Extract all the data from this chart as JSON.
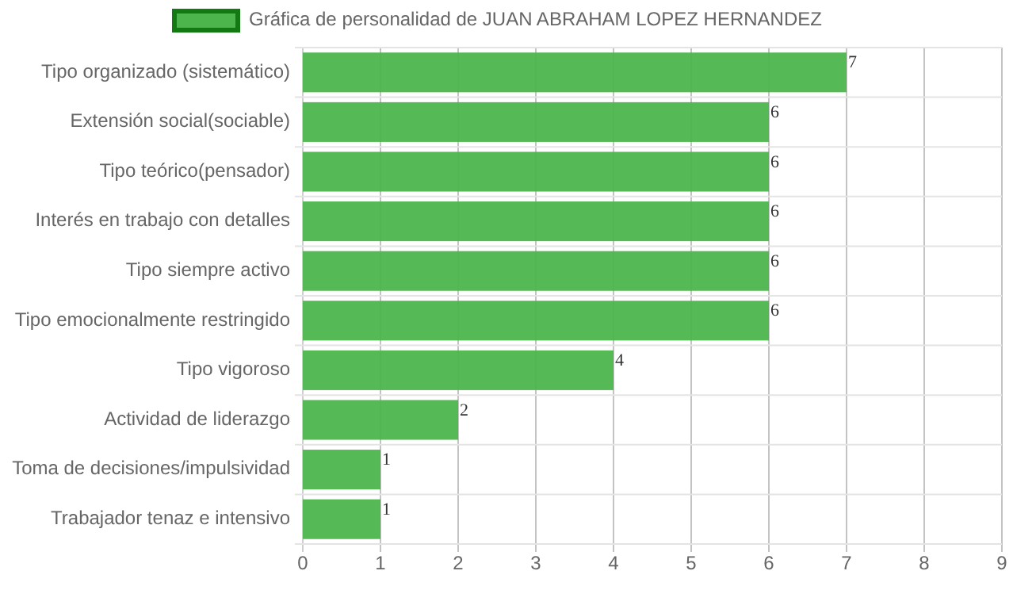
{
  "chart_data": {
    "type": "bar",
    "orientation": "horizontal",
    "categories": [
      "Tipo organizado (sistemático)",
      "Extensión social(sociable)",
      "Tipo teórico(pensador)",
      "Interés en trabajo con detalles",
      "Tipo siempre activo",
      "Tipo emocionalmente restringido",
      "Tipo vigoroso",
      "Actividad de liderazgo",
      "Toma de decisiones/impulsividad",
      "Trabajador tenaz e intensivo"
    ],
    "series": [
      {
        "name": "Gráfica de personalidad de JUAN ABRAHAM LOPEZ HERNANDEZ",
        "color": "#4cb64c",
        "values": [
          7,
          6,
          6,
          6,
          6,
          6,
          4,
          2,
          1,
          1
        ]
      }
    ],
    "xlim": [
      0,
      9
    ],
    "xticks": [
      0,
      1,
      2,
      3,
      4,
      5,
      6,
      7,
      8,
      9
    ],
    "grid": true,
    "legend": "top",
    "data_labels": true
  }
}
